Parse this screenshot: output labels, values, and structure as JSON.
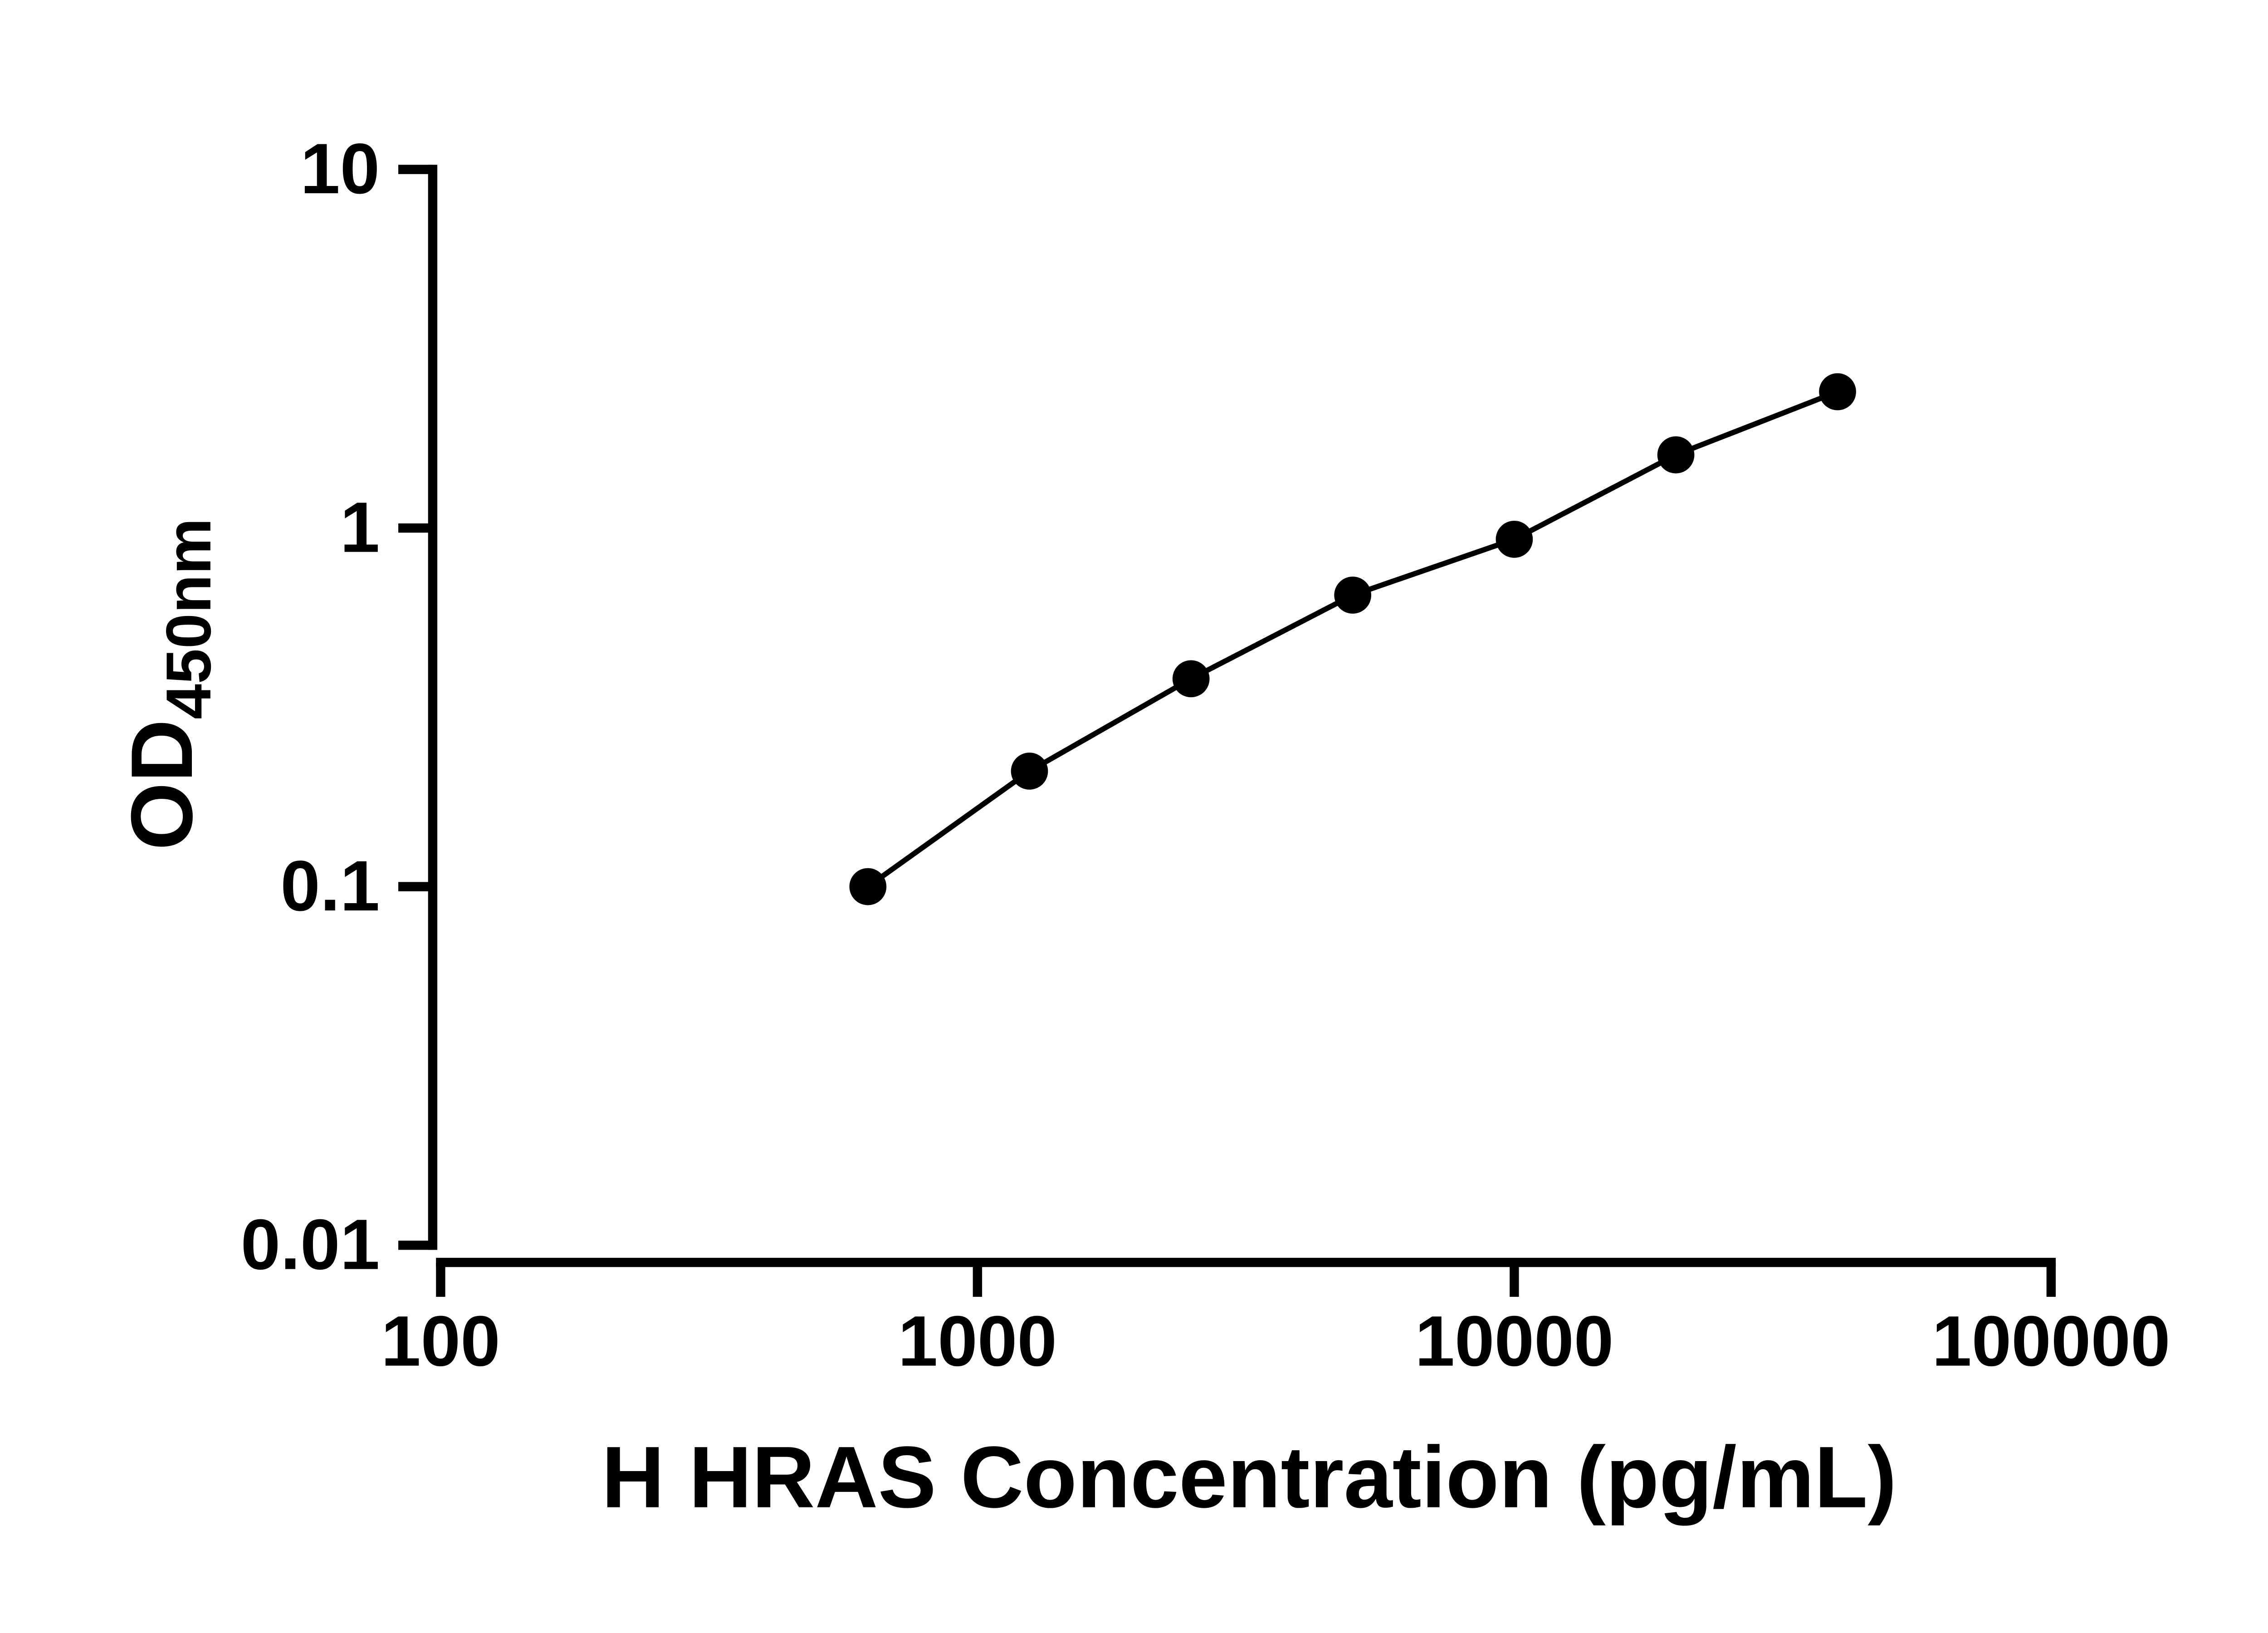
{
  "chart_data": {
    "type": "scatter",
    "title": "",
    "xlabel": "H HRAS Concentration (pg/mL)",
    "ylabel_main": "OD",
    "ylabel_sub": "450nm",
    "x_scale": "log",
    "y_scale": "log",
    "xlim": [
      100,
      100000
    ],
    "ylim": [
      0.01,
      10
    ],
    "grid": false,
    "legend_position": "none",
    "line_color": "#000000",
    "marker_color": "#000000",
    "x_ticks": [
      {
        "value": 100,
        "label": "100"
      },
      {
        "value": 1000,
        "label": "1000"
      },
      {
        "value": 10000,
        "label": "10000"
      },
      {
        "value": 100000,
        "label": "100000"
      }
    ],
    "y_ticks": [
      {
        "value": 0.01,
        "label": "0.01"
      },
      {
        "value": 0.1,
        "label": "0.1"
      },
      {
        "value": 1,
        "label": "1"
      },
      {
        "value": 10,
        "label": "10"
      }
    ],
    "series": [
      {
        "points": [
          {
            "x": 625,
            "y": 0.1
          },
          {
            "x": 1250,
            "y": 0.21
          },
          {
            "x": 2500,
            "y": 0.38
          },
          {
            "x": 5000,
            "y": 0.65
          },
          {
            "x": 10000,
            "y": 0.93
          },
          {
            "x": 20000,
            "y": 1.6
          },
          {
            "x": 40000,
            "y": 2.4
          }
        ]
      }
    ]
  }
}
